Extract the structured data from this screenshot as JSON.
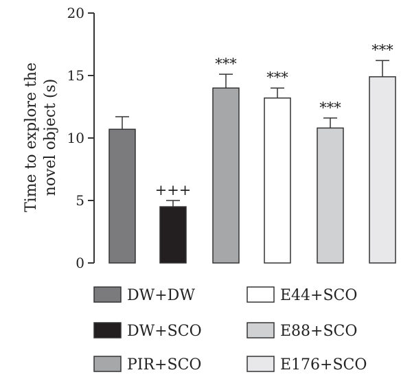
{
  "chart_data": {
    "type": "bar",
    "title": "",
    "xlabel": "",
    "ylabel_lines": [
      "Time to explore the",
      "novel object (s)"
    ],
    "ylim": [
      0,
      20
    ],
    "yticks": [
      0,
      5,
      10,
      15,
      20
    ],
    "ytick_labels": [
      "0",
      "5",
      "10",
      "15",
      "20"
    ],
    "categories": [
      "DW+DW",
      "DW+SCO",
      "PIR+SCO",
      "E44+SCO",
      "E88+SCO",
      "E176+SCO"
    ],
    "values": [
      10.7,
      4.5,
      14.0,
      13.2,
      10.8,
      14.9
    ],
    "errors": [
      1.0,
      0.5,
      1.1,
      0.8,
      0.8,
      1.3
    ],
    "annotations": [
      "",
      "+++",
      "***",
      "***",
      "***",
      "***"
    ],
    "colors": [
      "#7b7b7d",
      "#231f20",
      "#a6a7a9",
      "#ffffff",
      "#d0d1d3",
      "#e8e8ea"
    ],
    "legend": {
      "placement": "bottom",
      "entries": [
        "DW+DW",
        "DW+SCO",
        "PIR+SCO",
        "E44+SCO",
        "E88+SCO",
        "E176+SCO"
      ]
    },
    "grid": false
  }
}
